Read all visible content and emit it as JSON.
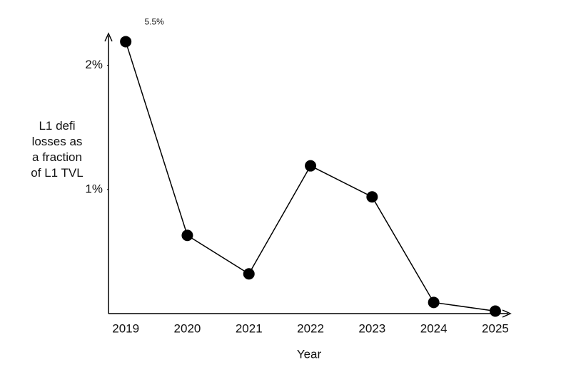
{
  "chart_data": {
    "type": "line",
    "x_label": "Year",
    "y_label": "L1 defi losses as a fraction of L1 TVL",
    "annotation": "5.5%",
    "categories": [
      "2019",
      "2020",
      "2021",
      "2022",
      "2023",
      "2024",
      "2025"
    ],
    "values": [
      2.19,
      0.63,
      0.32,
      1.19,
      0.94,
      0.09,
      0.02
    ],
    "color": "#000000",
    "ylim": [
      0,
      2.25
    ],
    "yticks": [
      {
        "value": 1,
        "label": "1%"
      },
      {
        "value": 2,
        "label": "2%"
      }
    ]
  }
}
